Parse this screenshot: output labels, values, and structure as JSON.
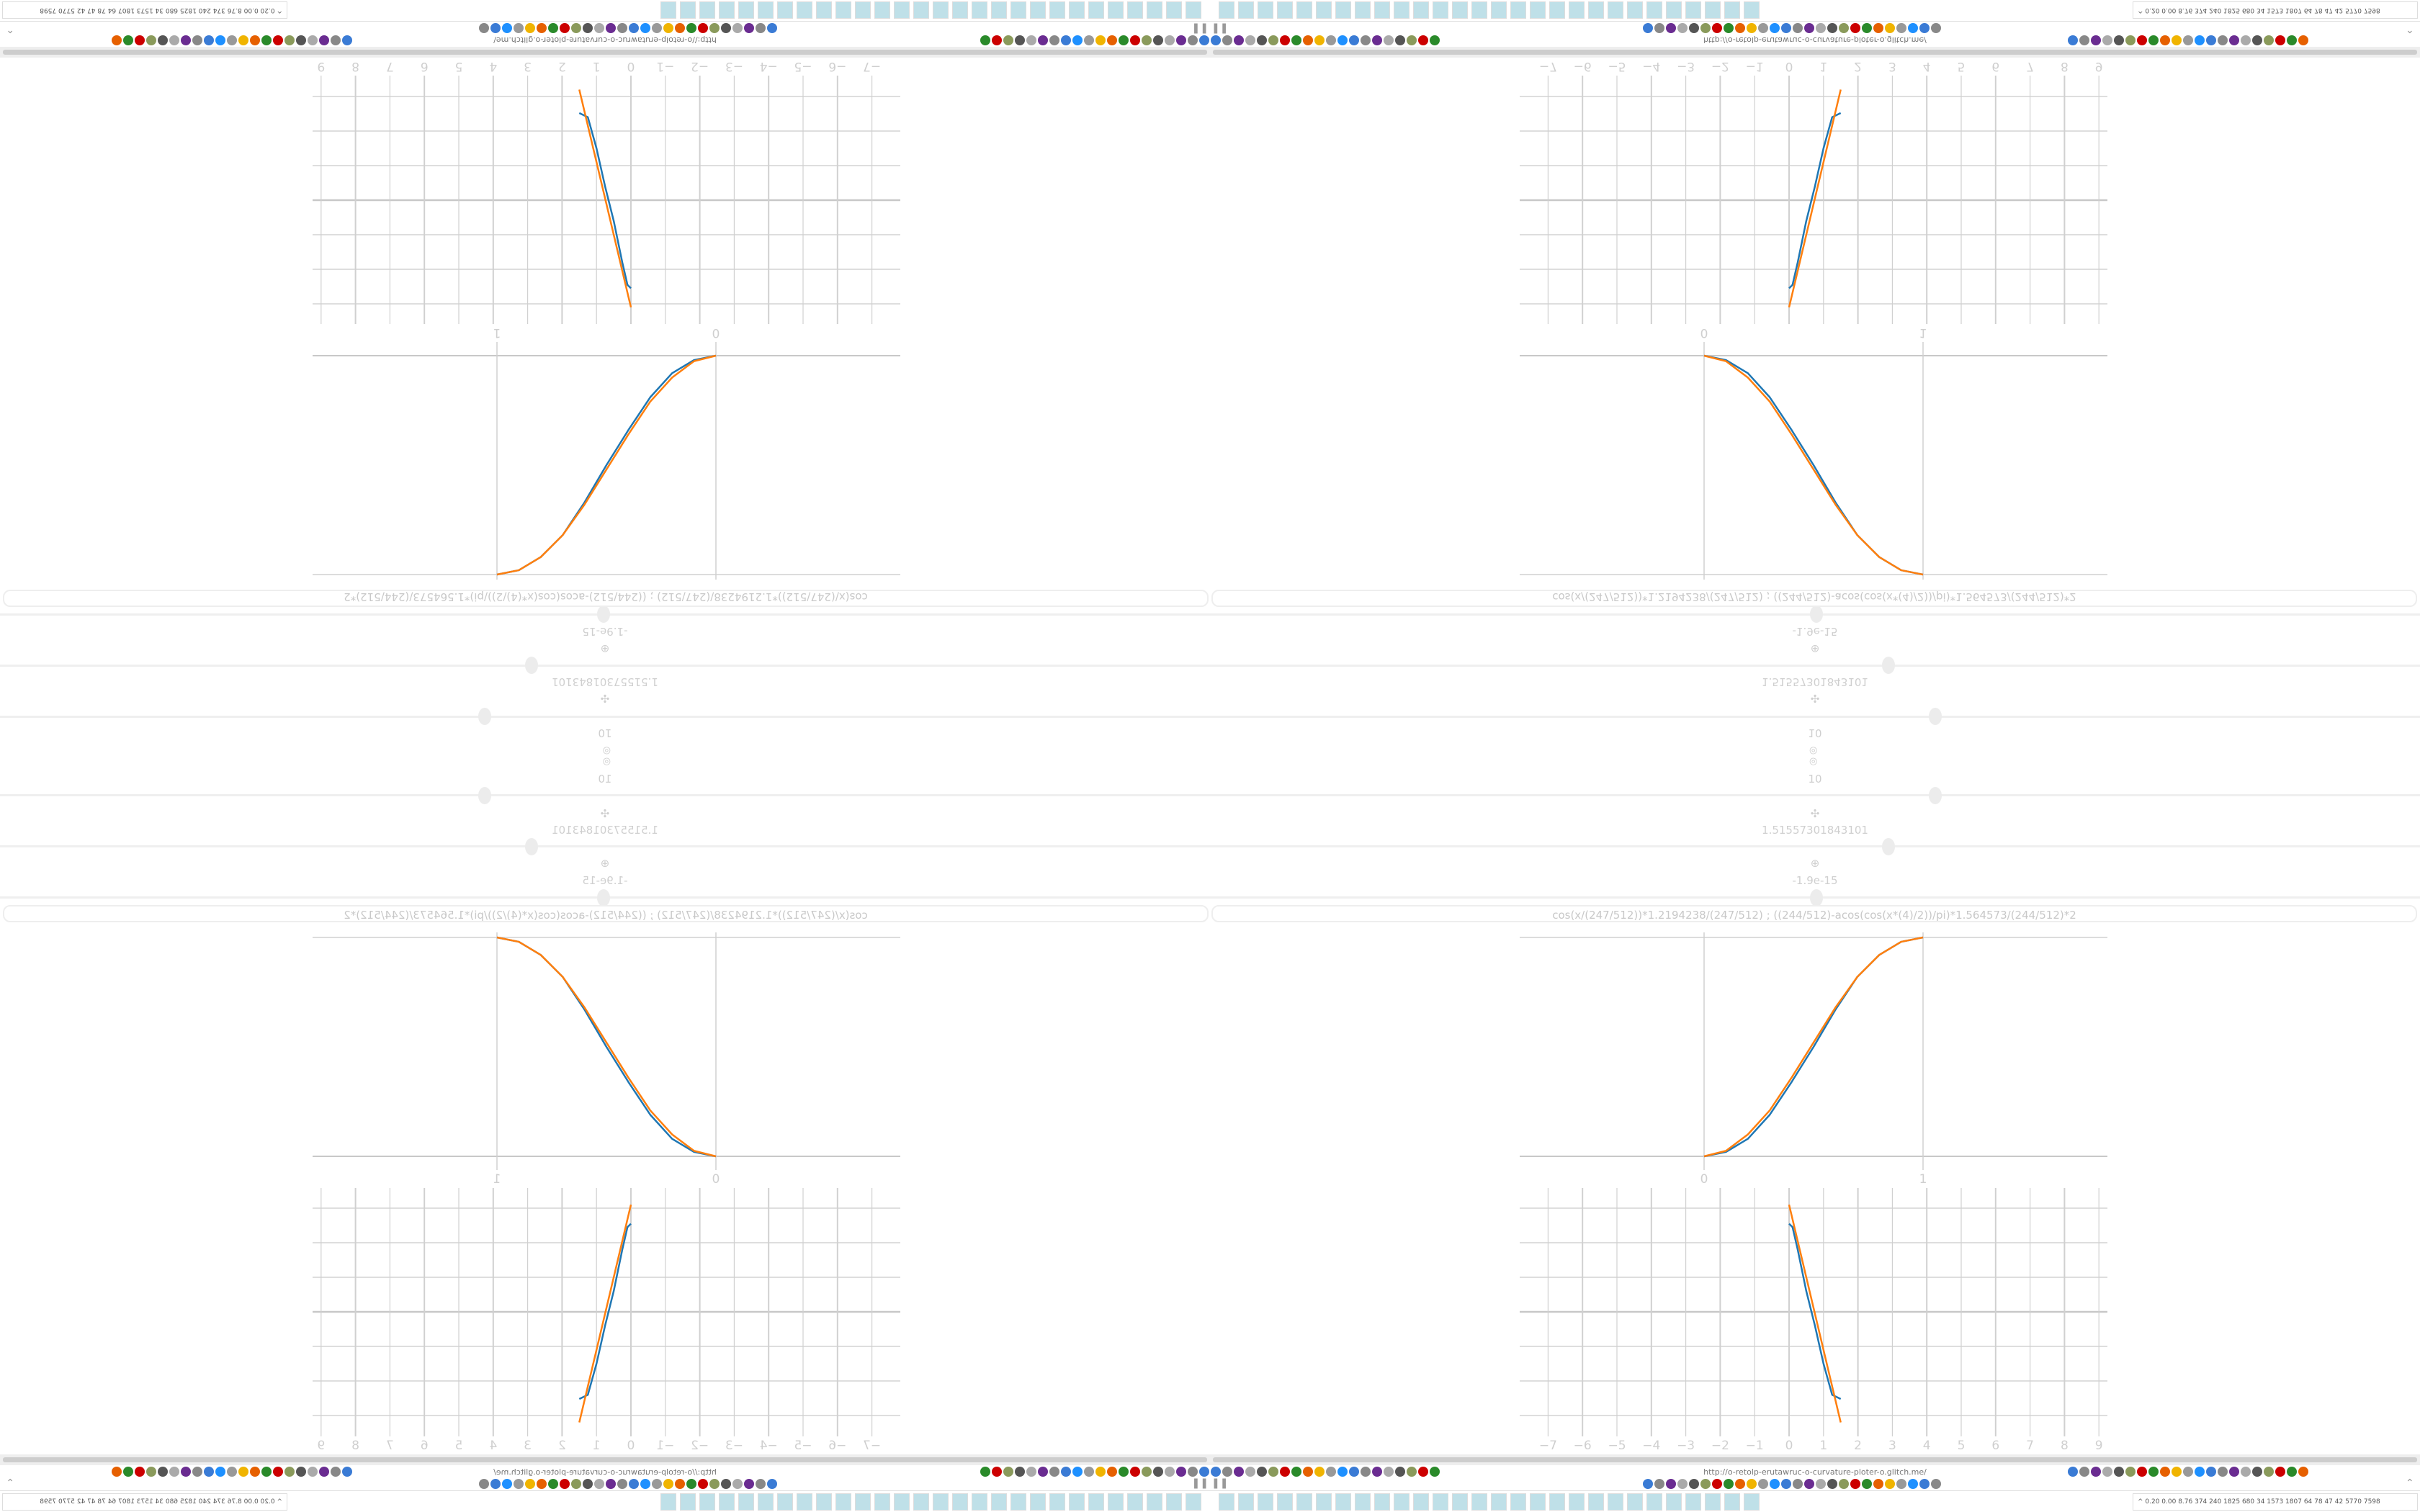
{
  "sliders": {
    "steps_top": "10",
    "steps_label": "10",
    "move_icon": "move-icon",
    "scale_value": "1.51557301843101",
    "offset_icon": "offset-icon",
    "offset_value": "-1.9e-15",
    "knob_positions_percent": [
      60,
      56,
      50
    ]
  },
  "expression": "cos(x/(247/512))*1.2194238/(247/512)   ;   ((244/512)-acos(cos(x*(4)/2))/pi)*1.564573/(244/512)*2",
  "colors": {
    "blue_series": "#1f77b4",
    "orange_series": "#ff7f0e",
    "grid": "#d0d0d0"
  },
  "chart_data": [
    {
      "type": "line",
      "x_ticks": [
        "0",
        "1"
      ],
      "xlim": [
        -0.84,
        1.84
      ],
      "ylim": [
        0,
        1
      ],
      "grid": true,
      "series": [
        {
          "color": "#1f77b4",
          "x": [
            0,
            0.1,
            0.2,
            0.3,
            0.4,
            0.5,
            0.6,
            0.7,
            0.8,
            0.9,
            1
          ],
          "y": [
            0,
            0.02,
            0.08,
            0.19,
            0.34,
            0.5,
            0.67,
            0.82,
            0.92,
            0.98,
            1
          ]
        },
        {
          "color": "#ff7f0e",
          "x": [
            0,
            0.1,
            0.2,
            0.3,
            0.4,
            0.5,
            0.6,
            0.7,
            0.8,
            0.9,
            1
          ],
          "y": [
            0,
            0.025,
            0.1,
            0.21,
            0.36,
            0.52,
            0.68,
            0.82,
            0.92,
            0.98,
            1
          ]
        }
      ]
    },
    {
      "type": "line",
      "x_ticks": [
        "−7",
        "−6",
        "−5",
        "−4",
        "−3",
        "−2",
        "−1",
        "0",
        "1",
        "2",
        "3",
        "4",
        "5",
        "6",
        "7",
        "8",
        "9"
      ],
      "xlim": [
        -7.5,
        9.3
      ],
      "ylim": [
        -3.6,
        3.6
      ],
      "grid": true,
      "series": [
        {
          "color": "#1f77b4",
          "x": [
            0,
            0.1,
            0.25,
            0.5,
            0.75,
            1,
            1.25,
            1.5
          ],
          "y": [
            2.55,
            2.45,
            1.8,
            0.6,
            -0.4,
            -1.5,
            -2.4,
            -2.52
          ]
        },
        {
          "color": "#ff7f0e",
          "x": [
            0,
            1.5
          ],
          "y": [
            3.1,
            -3.2
          ]
        }
      ]
    }
  ],
  "browser": {
    "url": "http://o-retolp-erutawruc-o-curvature-ploter-o.glitch.me/",
    "toolbar_left_icons": [
      "filter-icon",
      "extension-icon",
      "globe-icon",
      "globe-icon",
      "headphones-icon",
      "headphones-icon",
      "globe-icon",
      "wrench-icon",
      "firefox-icon",
      "gear-icon",
      "globe-icon",
      "dot-icon",
      "dot-icon",
      "dot-icon",
      "dot-icon",
      "dot-icon",
      "folder-icon",
      "back-icon",
      "shield-icon",
      "lock-icon"
    ],
    "toolbar_right_icons": [
      "translate-icon",
      "star-icon",
      "forward-icon",
      "reload-icon",
      "download-icon",
      "pencil-icon",
      "translate-icon",
      "mouse-icon",
      "gear-icon",
      "plus-icon",
      "arrow-icon",
      "record-icon",
      "trash-icon",
      "globe-icon",
      "book-icon",
      "ublock-icon",
      "shield-icon",
      "globe-icon",
      "puzzle-icon",
      "wrench-icon",
      "gear-icon"
    ],
    "bookmark_icons": [
      "clock-icon",
      "speaker-icon",
      "cc-icon",
      "speaker-icon",
      "speaker-icon",
      "sound-icon",
      "globe-icon",
      "wikipedia-icon",
      "bookmark-icon",
      "globe-icon",
      "archive-icon",
      "translate-icon",
      "google-icon",
      "google-icon",
      "gear-icon",
      "google-icon",
      "bookmark-icon",
      "google-icon",
      "google-icon",
      "yandex-icon",
      "grid-icon",
      "image-icon",
      "sun-icon",
      "cc-icon",
      "image-icon",
      "hourglass-icon"
    ]
  },
  "taskbar": {
    "apps": [
      "terminal-icon",
      "monitor-icon",
      "firefox-icon",
      "floppy-icon",
      "notepad-icon",
      "notepad-icon",
      "notepad-icon",
      "notepad-icon",
      "notepad-icon",
      "notepad-icon",
      "notepad-icon",
      "notepad-icon",
      "notepad-icon",
      "notepad-icon",
      "inkscape-icon",
      "app-icon",
      "calculator-icon",
      "calculator-icon",
      "calculator-icon",
      "calculator-icon",
      "calculator-icon",
      "calculator-icon",
      "calculator-icon",
      "game-icon",
      "scroll-icon",
      "scroll-icon",
      "scroll-icon",
      "blank-icon"
    ],
    "tray_text": "^  0.20 0.00 8.76  374  240 1825 680   34  1573 1807   64    78    47    42  5770 7598"
  }
}
